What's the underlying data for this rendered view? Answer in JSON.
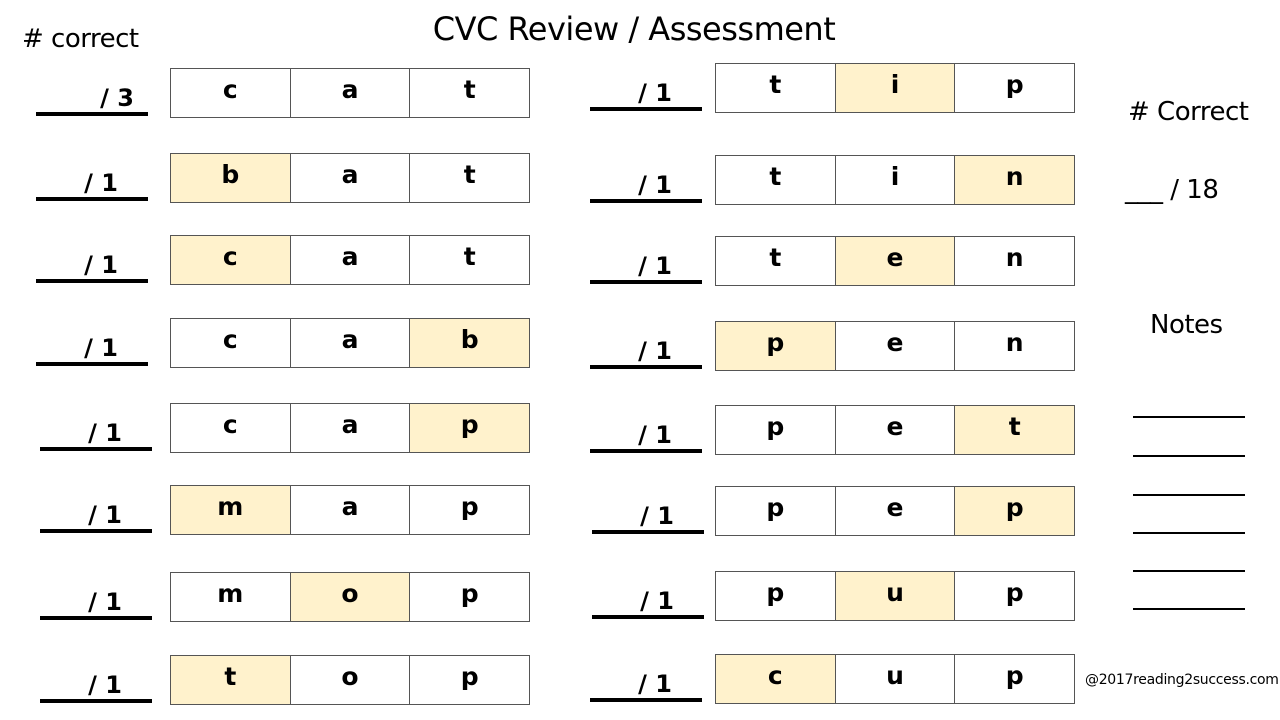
{
  "title": "CVC Review / Assessment",
  "left_header": "# correct",
  "right_panel": {
    "correct_label": "# Correct",
    "total_blank": "___",
    "total_text": "/ 18",
    "notes_label": "Notes",
    "note_lines": 6
  },
  "credit": "@2017reading2success.com",
  "highlight_color": "#fff2cc",
  "left_column": [
    {
      "score": "/ 3",
      "letters": [
        "c",
        "a",
        "t"
      ],
      "highlight": -1
    },
    {
      "score": "/ 1",
      "letters": [
        "b",
        "a",
        "t"
      ],
      "highlight": 0
    },
    {
      "score": "/ 1",
      "letters": [
        "c",
        "a",
        "t"
      ],
      "highlight": 0
    },
    {
      "score": "/ 1",
      "letters": [
        "c",
        "a",
        "b"
      ],
      "highlight": 2
    },
    {
      "score": "/ 1",
      "letters": [
        "c",
        "a",
        "p"
      ],
      "highlight": 2
    },
    {
      "score": "/ 1",
      "letters": [
        "m",
        "a",
        "p"
      ],
      "highlight": 0
    },
    {
      "score": "/ 1",
      "letters": [
        "m",
        "o",
        "p"
      ],
      "highlight": 1
    },
    {
      "score": "/ 1",
      "letters": [
        "t",
        "o",
        "p"
      ],
      "highlight": 0
    }
  ],
  "right_column": [
    {
      "score": "/ 1",
      "letters": [
        "t",
        "i",
        "p"
      ],
      "highlight": 1
    },
    {
      "score": "/ 1",
      "letters": [
        "t",
        "i",
        "n"
      ],
      "highlight": 2
    },
    {
      "score": "/ 1",
      "letters": [
        "t",
        "e",
        "n"
      ],
      "highlight": 1
    },
    {
      "score": "/ 1",
      "letters": [
        "p",
        "e",
        "n"
      ],
      "highlight": 0
    },
    {
      "score": "/ 1",
      "letters": [
        "p",
        "e",
        "t"
      ],
      "highlight": 2
    },
    {
      "score": "/ 1",
      "letters": [
        "p",
        "e",
        "p"
      ],
      "highlight": 2
    },
    {
      "score": "/ 1",
      "letters": [
        "p",
        "u",
        "p"
      ],
      "highlight": 1
    },
    {
      "score": "/ 1",
      "letters": [
        "c",
        "u",
        "p"
      ],
      "highlight": 0
    }
  ]
}
